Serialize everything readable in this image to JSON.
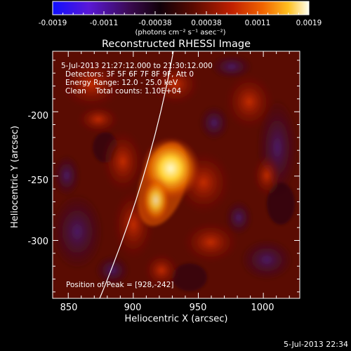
{
  "colorbar": {
    "tick_labels": [
      "-0.0019",
      "-0.0011",
      "-0.00038",
      "0.00038",
      "0.0011",
      "0.0019"
    ],
    "units": "(photons cm⁻² s⁻¹ asec⁻²)"
  },
  "title": "Reconstructed RHESSI Image",
  "annotations": {
    "time_range": "5-Jul-2013 21:27:12.000 to 21:30:12.000",
    "detectors": "Detectors: 3F 5F 6F 7F 8F 9F, Att 0",
    "energy": "Energy Range: 12.0 - 25.0 keV",
    "clean": "Clean    Total counts: 1.10E+04",
    "peak": "Position of Peak = [928,-242]"
  },
  "axes": {
    "xlabel": "Heliocentric X (arcsec)",
    "ylabel": "Heliocentric Y (arcsec)",
    "x_ticks": [
      "850",
      "900",
      "950",
      "1000"
    ],
    "y_ticks": [
      "-200",
      "-250",
      "-300"
    ],
    "x_range": [
      838,
      1028
    ],
    "y_range": [
      -345,
      -153
    ]
  },
  "footer": {
    "timestamp": "5-Jul-2013 22:34"
  },
  "colors": {
    "colormap": [
      "#1010ff",
      "#6a14c8",
      "#3a0a40",
      "#000000",
      "#5a0a00",
      "#b01a00",
      "#e85a00",
      "#ffb400",
      "#fffbe0"
    ],
    "limb_line": "#ffffff"
  }
}
